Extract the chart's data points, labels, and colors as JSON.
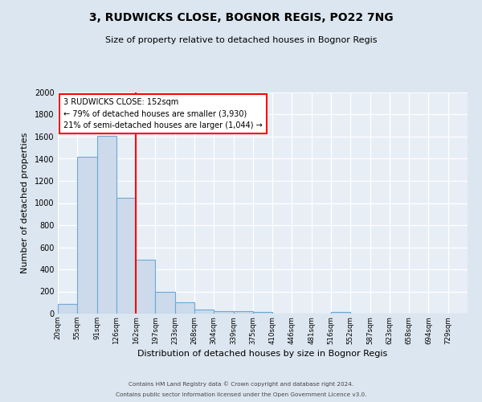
{
  "title": "3, RUDWICKS CLOSE, BOGNOR REGIS, PO22 7NG",
  "subtitle": "Size of property relative to detached houses in Bognor Regis",
  "xlabel": "Distribution of detached houses by size in Bognor Regis",
  "ylabel": "Number of detached properties",
  "footer_line1": "Contains HM Land Registry data © Crown copyright and database right 2024.",
  "footer_line2": "Contains public sector information licensed under the Open Government Licence v3.0.",
  "bin_labels": [
    "20sqm",
    "55sqm",
    "91sqm",
    "126sqm",
    "162sqm",
    "197sqm",
    "233sqm",
    "268sqm",
    "304sqm",
    "339sqm",
    "375sqm",
    "410sqm",
    "446sqm",
    "481sqm",
    "516sqm",
    "552sqm",
    "587sqm",
    "623sqm",
    "658sqm",
    "694sqm",
    "729sqm"
  ],
  "bar_heights": [
    85,
    1415,
    1610,
    1050,
    490,
    200,
    105,
    40,
    20,
    20,
    18,
    0,
    0,
    0,
    18,
    0,
    0,
    0,
    0,
    0,
    0
  ],
  "bar_color": "#ccdaeb",
  "bar_edge_color": "#6aaad4",
  "vline_x": 4,
  "vline_color": "red",
  "annotation_title": "3 RUDWICKS CLOSE: 152sqm",
  "annotation_line1": "← 79% of detached houses are smaller (3,930)",
  "annotation_line2": "21% of semi-detached houses are larger (1,044) →",
  "annotation_box_color": "white",
  "annotation_box_edge_color": "red",
  "ylim": [
    0,
    2000
  ],
  "yticks": [
    0,
    200,
    400,
    600,
    800,
    1000,
    1200,
    1400,
    1600,
    1800,
    2000
  ],
  "bg_color": "#dce6f0",
  "plot_bg_color": "#e8eef6"
}
